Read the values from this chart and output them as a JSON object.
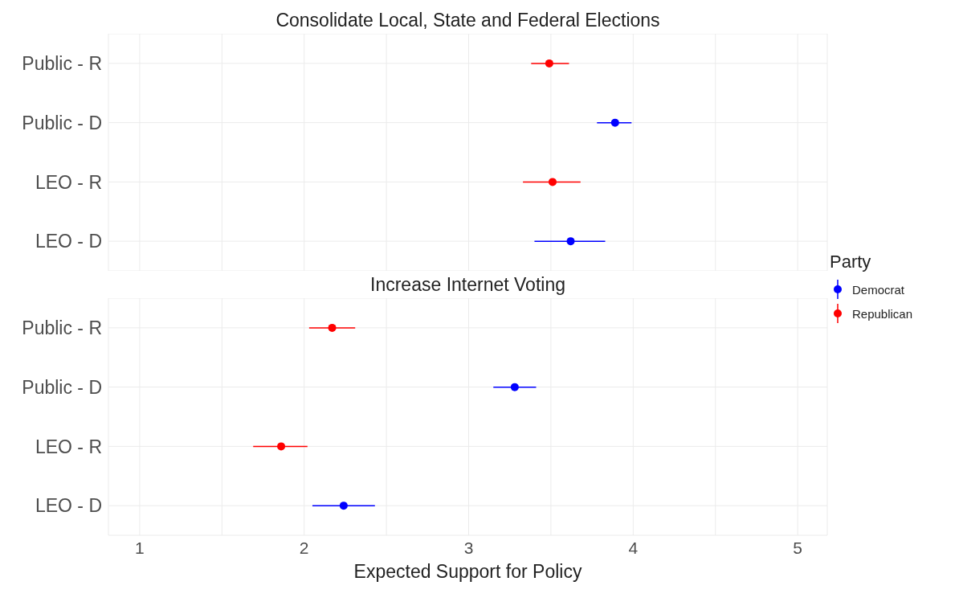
{
  "chart_data": [
    {
      "type": "scatter",
      "orientation": "horizontal",
      "title": "Consolidate Local, State and Federal Elections",
      "categories": [
        "Public - R",
        "Public - D",
        "LEO - R",
        "LEO - D"
      ],
      "series": [
        {
          "name": "Democrat",
          "color": "#0000ff",
          "values": [
            null,
            3.89,
            null,
            3.62
          ],
          "errors": [
            null,
            [
              3.78,
              3.99
            ],
            null,
            [
              3.4,
              3.83
            ]
          ]
        },
        {
          "name": "Republican",
          "color": "#ff0000",
          "values": [
            3.49,
            null,
            3.51,
            null
          ],
          "errors": [
            [
              3.38,
              3.61
            ],
            null,
            [
              3.33,
              3.68
            ],
            null
          ]
        }
      ],
      "xlim": [
        0.81,
        5.18
      ],
      "xticks": [
        1,
        {
          "value": 1.5,
          "label": null
        },
        2,
        {
          "value": 2.5,
          "label": null
        },
        3,
        {
          "value": 3.5,
          "label": null
        },
        4,
        {
          "value": 4.5,
          "label": null
        },
        5
      ],
      "tick_labels": "y",
      "grid": true,
      "marker": "circle",
      "legend": "right",
      "legend_title": "Party"
    },
    {
      "type": "scatter",
      "orientation": "horizontal",
      "title": "Increase Internet Voting",
      "xlabel": "Expected Support for Policy",
      "categories": [
        "Public - R",
        "Public - D",
        "LEO - R",
        "LEO - D"
      ],
      "series": [
        {
          "color": "#0000ff",
          "values": [
            null,
            3.28,
            null,
            2.24
          ],
          "errors": [
            null,
            [
              3.15,
              3.41
            ],
            null,
            [
              2.05,
              2.43
            ]
          ]
        },
        {
          "color": "#ff0000",
          "values": [
            2.17,
            null,
            1.86,
            null
          ],
          "errors": [
            [
              2.03,
              2.31
            ],
            null,
            [
              1.69,
              2.02
            ],
            null
          ]
        }
      ],
      "xlim": [
        0.81,
        5.18
      ],
      "xticks": [
        1,
        {
          "value": 1.5,
          "label": null
        },
        2,
        {
          "value": 2.5,
          "label": null
        },
        3,
        {
          "value": 3.5,
          "label": null
        },
        4,
        {
          "value": 4.5,
          "label": null
        },
        5
      ],
      "grid": true,
      "marker": "circle"
    }
  ]
}
